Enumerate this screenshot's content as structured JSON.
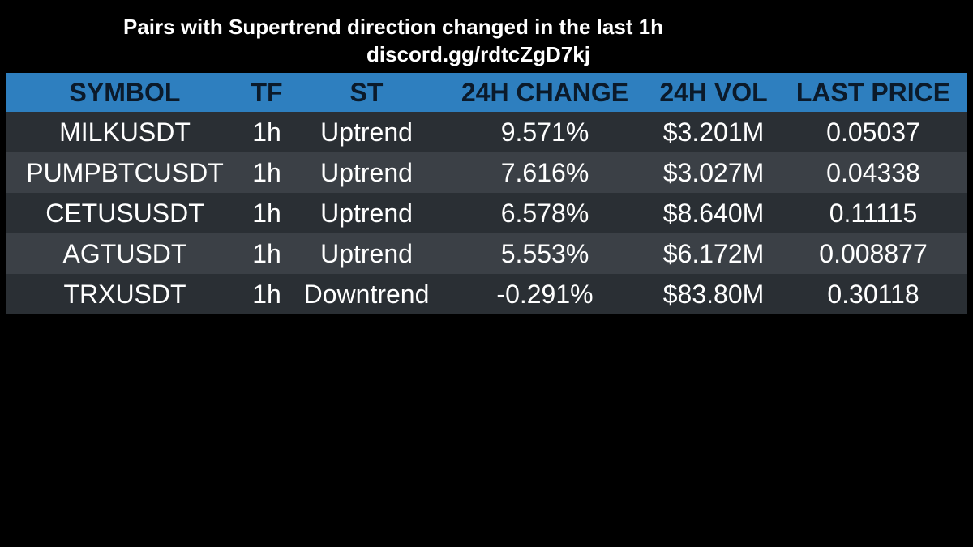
{
  "header": {
    "title": "Pairs with Supertrend direction changed in the last 1h",
    "subtitle": "discord.gg/rdtcZgD7kj"
  },
  "table": {
    "columns": [
      "SYMBOL",
      "TF",
      "ST",
      "24H CHANGE",
      "24H VOL",
      "LAST PRICE"
    ],
    "rows": [
      [
        "MILKUSDT",
        "1h",
        "Uptrend",
        "9.571%",
        "$3.201M",
        "0.05037"
      ],
      [
        "PUMPBTCUSDT",
        "1h",
        "Uptrend",
        "7.616%",
        "$3.027M",
        "0.04338"
      ],
      [
        "CETUSUSDT",
        "1h",
        "Uptrend",
        "6.578%",
        "$8.640M",
        "0.11115"
      ],
      [
        "AGTUSDT",
        "1h",
        "Uptrend",
        "5.553%",
        "$6.172M",
        "0.008877"
      ],
      [
        "TRXUSDT",
        "1h",
        "Downtrend",
        "-0.291%",
        "$83.80M",
        "0.30118"
      ]
    ]
  }
}
